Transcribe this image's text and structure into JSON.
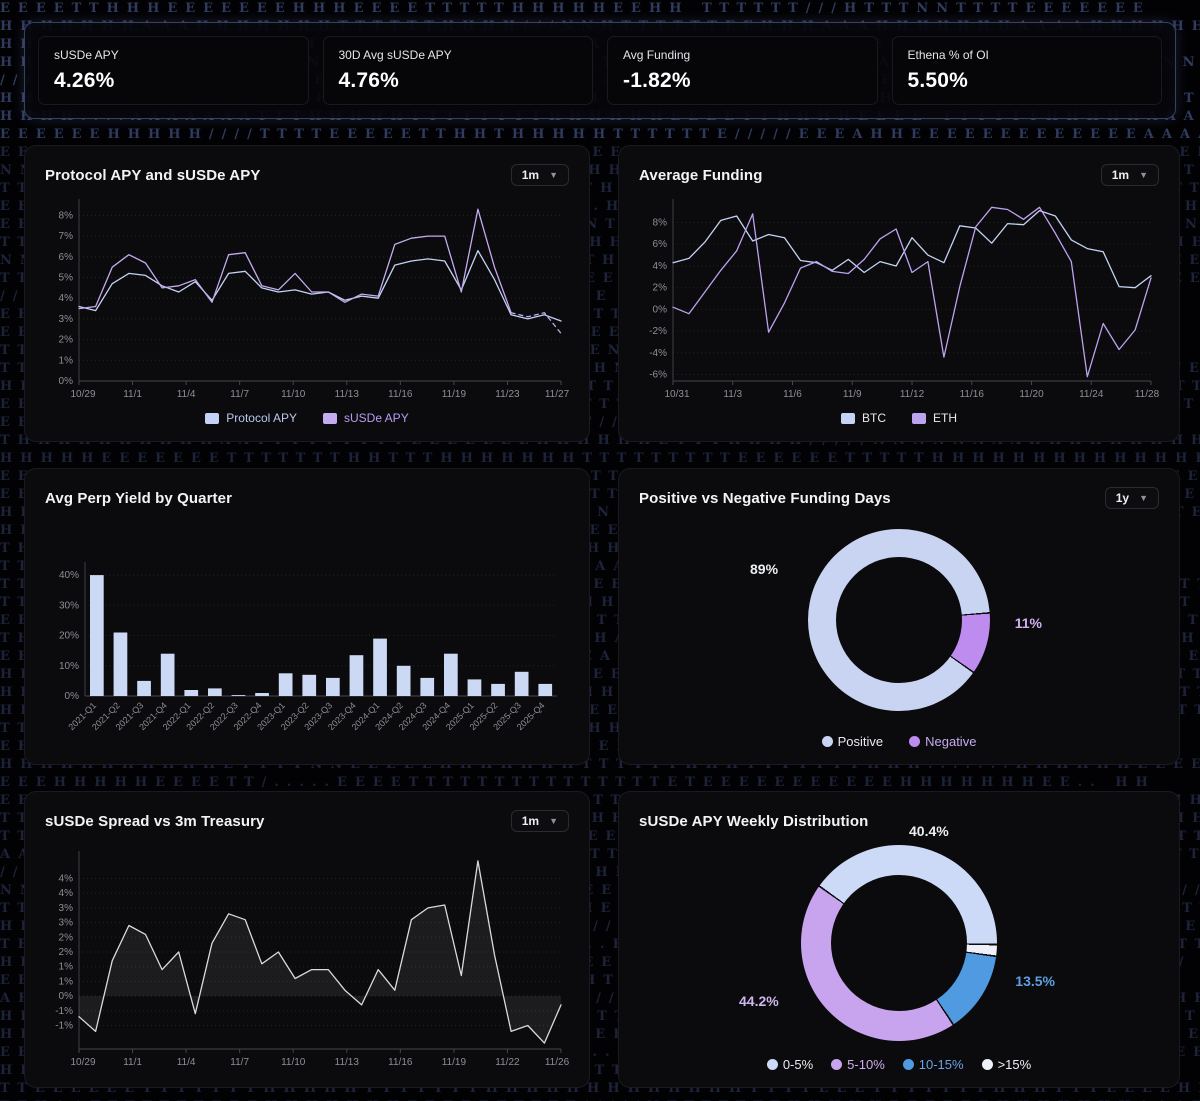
{
  "stats": {
    "cards": [
      {
        "label": "sUSDe APY",
        "value": "4.26%"
      },
      {
        "label": "30D Avg sUSDe APY",
        "value": "4.76%"
      },
      {
        "label": "Avg Funding",
        "value": "-1.82%"
      },
      {
        "label": "Ethena % of OI",
        "value": "5.50%"
      }
    ]
  },
  "panels": {
    "protocol": {
      "title": "Protocol APY and sUSDe APY",
      "range": "1m",
      "legend": [
        "Protocol APY",
        "sUSDe APY"
      ]
    },
    "funding": {
      "title": "Average Funding",
      "range": "1m",
      "legend": [
        "BTC",
        "ETH"
      ]
    },
    "perp": {
      "title": "Avg Perp Yield by Quarter"
    },
    "funding_days": {
      "title": "Positive vs Negative Funding Days",
      "range": "1y",
      "labels": {
        "positive": "89%",
        "negative": "11%"
      },
      "legend": [
        "Positive",
        "Negative"
      ]
    },
    "spread": {
      "title": "sUSDe Spread vs 3m Treasury",
      "range": "1m"
    },
    "weekly": {
      "title": "sUSDe APY Weekly Distribution",
      "labels": {
        "b0": "40.4%",
        "b2": "13.5%",
        "b1": "44.2%"
      },
      "legend": [
        "0-5%",
        "5-10%",
        "10-15%",
        ">15%"
      ]
    }
  },
  "colors": {
    "periwinkle": "#c3d2f5",
    "purple": "#b48df0",
    "purple_light": "#c9a4ee",
    "blue": "#4f9ae0",
    "white_slice": "#eef1fa",
    "bar": "#ccd9f5",
    "grey_line": "#d8dade",
    "tick": "#8e8e99",
    "grid": "rgba(255,255,255,0.10)",
    "panel_bg": "#0b0b0d"
  },
  "background_letters": "THENA./",
  "chart_data": [
    {
      "id": "protocol",
      "type": "line",
      "title": "Protocol APY and sUSDe APY",
      "x_labels": [
        "10/29",
        "11/1",
        "11/4",
        "11/7",
        "11/10",
        "11/13",
        "11/16",
        "11/19",
        "11/23",
        "11/27"
      ],
      "ylim": [
        0,
        8.6
      ],
      "yticks": [
        {
          "v": 8,
          "t": "8%"
        },
        {
          "v": 7,
          "t": "7%"
        },
        {
          "v": 6,
          "t": "6%"
        },
        {
          "v": 5,
          "t": "5%"
        },
        {
          "v": 4,
          "t": "4%"
        },
        {
          "v": 3,
          "t": "3%"
        },
        {
          "v": 2,
          "t": "2%"
        },
        {
          "v": 1,
          "t": "1%"
        },
        {
          "v": 0,
          "t": "0%"
        }
      ],
      "series": [
        {
          "name": "Protocol APY",
          "color": "#c3d2f5",
          "values": [
            3.6,
            3.4,
            4.7,
            5.2,
            5.1,
            4.6,
            4.3,
            4.8,
            3.9,
            5.2,
            5.3,
            4.5,
            4.3,
            4.4,
            4.2,
            4.3,
            3.9,
            4.1,
            4.0,
            5.6,
            5.8,
            5.9,
            5.8,
            4.4,
            6.3,
            4.9,
            3.2,
            3.0,
            3.2,
            2.9
          ]
        },
        {
          "name": "sUSDe APY",
          "color": "#c4abef",
          "dash_from": 26,
          "values": [
            3.5,
            3.6,
            5.5,
            6.1,
            5.7,
            4.5,
            4.6,
            4.9,
            3.8,
            6.1,
            6.2,
            4.6,
            4.4,
            5.2,
            4.3,
            4.3,
            3.8,
            4.2,
            4.1,
            6.6,
            6.9,
            7.0,
            7.0,
            4.3,
            8.3,
            5.5,
            3.3,
            3.1,
            3.3,
            2.3
          ]
        }
      ],
      "grid": true,
      "legend_position": "bottom"
    },
    {
      "id": "funding",
      "type": "line",
      "title": "Average Funding",
      "x_labels": [
        "10/31",
        "11/3",
        "11/6",
        "11/9",
        "11/12",
        "11/16",
        "11/20",
        "11/24",
        "11/28"
      ],
      "ylim": [
        -6.6,
        9.8
      ],
      "yticks": [
        {
          "v": 8,
          "t": "8%"
        },
        {
          "v": 6,
          "t": "6%"
        },
        {
          "v": 4,
          "t": "4%"
        },
        {
          "v": 2,
          "t": "2%"
        },
        {
          "v": 0,
          "t": "0%"
        },
        {
          "v": -2,
          "t": "-2%"
        },
        {
          "v": -4,
          "t": "-4%"
        },
        {
          "v": -6,
          "t": "-6%"
        }
      ],
      "series": [
        {
          "name": "BTC",
          "color": "#c3d2f5",
          "values": [
            4.3,
            4.7,
            6.2,
            8.2,
            8.6,
            6.3,
            6.9,
            6.6,
            4.5,
            4.3,
            3.6,
            4.6,
            3.4,
            4.4,
            4.0,
            6.6,
            5.0,
            4.3,
            7.7,
            7.5,
            6.1,
            7.9,
            7.8,
            9.1,
            8.6,
            6.4,
            5.6,
            5.3,
            2.1,
            2.0,
            3.1
          ]
        },
        {
          "name": "ETH",
          "color": "#bda2f0",
          "values": [
            0.2,
            -0.4,
            1.6,
            3.6,
            5.4,
            8.8,
            -2.1,
            0.6,
            3.8,
            4.4,
            3.5,
            3.3,
            4.6,
            6.5,
            7.4,
            3.4,
            4.4,
            -4.4,
            2.1,
            7.6,
            9.4,
            9.2,
            8.3,
            9.4,
            7.0,
            4.4,
            -6.2,
            -1.3,
            -3.7,
            -1.9,
            2.9
          ]
        }
      ],
      "grid": true,
      "legend_position": "bottom"
    },
    {
      "id": "perp",
      "type": "bar",
      "title": "Avg Perp Yield by Quarter",
      "categories": [
        "2021-Q1",
        "2021-Q2",
        "2021-Q3",
        "2021-Q4",
        "2022-Q1",
        "2022-Q2",
        "2022-Q3",
        "2022-Q4",
        "2023-Q1",
        "2023-Q2",
        "2023-Q3",
        "2023-Q4",
        "2024-Q1",
        "2024-Q2",
        "2024-Q3",
        "2024-Q4",
        "2025-Q1",
        "2025-Q2",
        "2025-Q3",
        "2025-Q4"
      ],
      "values": [
        40,
        21,
        5,
        14,
        2,
        2.5,
        0.3,
        1,
        7.5,
        7,
        6,
        13.5,
        19,
        10,
        6,
        14,
        5.5,
        4,
        8,
        4
      ],
      "ylim": [
        0,
        43
      ],
      "yticks": [
        {
          "v": 40,
          "t": "40%"
        },
        {
          "v": 30,
          "t": "30%"
        },
        {
          "v": 20,
          "t": "20%"
        },
        {
          "v": 10,
          "t": "10%"
        },
        {
          "v": 0,
          "t": "0%"
        }
      ],
      "bar_color": "#ccd9f5",
      "grid": true
    },
    {
      "id": "funding_days",
      "type": "donut",
      "title": "Positive vs Negative Funding Days",
      "start_angle": 85,
      "slices": [
        {
          "label": "Negative",
          "value": 11,
          "color": "#bd8cee"
        },
        {
          "label": "Positive",
          "value": 89,
          "color": "#c9d4f2"
        }
      ],
      "legend_position": "bottom"
    },
    {
      "id": "spread",
      "type": "area",
      "title": "sUSDe Spread vs 3m Treasury",
      "x_labels": [
        "10/29",
        "11/1",
        "11/4",
        "11/7",
        "11/10",
        "11/13",
        "11/16",
        "11/19",
        "11/22",
        "11/26"
      ],
      "ylim": [
        -1.8,
        4.8
      ],
      "yticks": [
        {
          "v": 4,
          "t": "4%"
        },
        {
          "v": 3.5,
          "t": "4%"
        },
        {
          "v": 3,
          "t": "3%"
        },
        {
          "v": 2.5,
          "t": "3%"
        },
        {
          "v": 2,
          "t": "2%"
        },
        {
          "v": 1.5,
          "t": "2%"
        },
        {
          "v": 1,
          "t": "1%"
        },
        {
          "v": 0.5,
          "t": "1%"
        },
        {
          "v": 0,
          "t": "0%"
        },
        {
          "v": -0.5,
          "t": "-1%"
        },
        {
          "v": -1,
          "t": "-1%"
        }
      ],
      "values": [
        -0.7,
        -1.2,
        1.2,
        2.4,
        2.1,
        0.9,
        1.5,
        -0.6,
        1.8,
        2.8,
        2.6,
        1.1,
        1.5,
        0.6,
        0.9,
        0.9,
        0.2,
        -0.3,
        0.9,
        0.2,
        2.6,
        3.0,
        3.1,
        0.7,
        4.6,
        1.4,
        -1.2,
        -1.0,
        -1.6,
        -0.3
      ],
      "line_color": "#d8dade",
      "fill": "rgba(255,255,255,0.07)",
      "grid": true
    },
    {
      "id": "weekly",
      "type": "donut",
      "title": "sUSDe APY Weekly Distribution",
      "start_angle": 305,
      "slices": [
        {
          "label": "0-5%",
          "value": 40.4,
          "color": "#ccd9f7"
        },
        {
          "label": ">15%",
          "value": 1.9,
          "color": "#eef1fa"
        },
        {
          "label": "10-15%",
          "value": 13.5,
          "color": "#4f9ae0"
        },
        {
          "label": "5-10%",
          "value": 44.2,
          "color": "#c9a4ee"
        }
      ],
      "legend_position": "bottom"
    }
  ]
}
